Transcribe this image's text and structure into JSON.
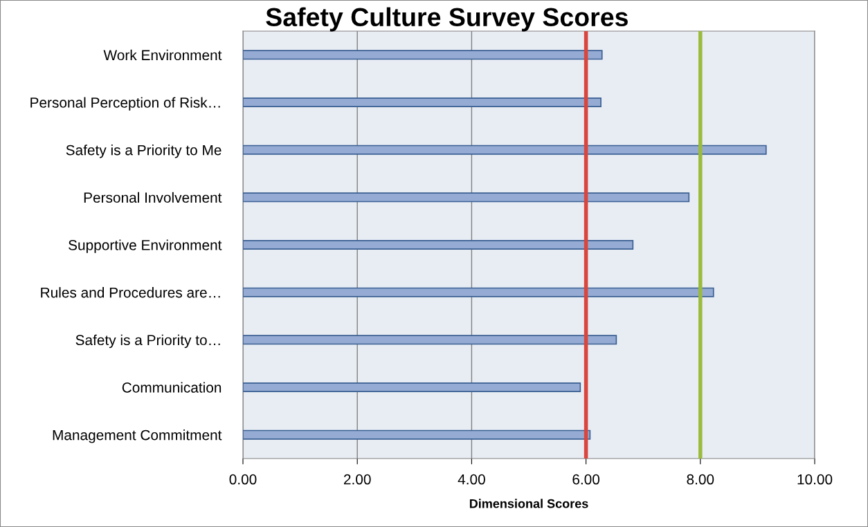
{
  "chart_data": {
    "type": "bar",
    "orientation": "horizontal",
    "title": "Safety Culture Survey Scores",
    "xlabel": "Dimensional Scores",
    "categories": [
      "Work Environment",
      "Personal Perception of Risk…",
      "Safety is a Priority to Me",
      "Personal Involvement",
      "Supportive Environment",
      "Rules and Procedures are…",
      "Safety is a Priority to…",
      "Communication",
      "Management Commitment"
    ],
    "values": [
      6.28,
      6.26,
      9.15,
      7.8,
      6.82,
      8.23,
      6.53,
      5.9,
      6.07
    ],
    "color": "#95abd3",
    "xlim": [
      0,
      10
    ],
    "xticks": [
      {
        "value": 0,
        "label": "0.00"
      },
      {
        "value": 2,
        "label": "2.00"
      },
      {
        "value": 4,
        "label": "4.00"
      },
      {
        "value": 6,
        "label": "6.00"
      },
      {
        "value": 8,
        "label": "8.00"
      },
      {
        "value": 10,
        "label": "10.00"
      }
    ],
    "grid": "x",
    "ref_lines": [
      {
        "axis": "x",
        "value": 6,
        "color": "#d9463e"
      },
      {
        "axis": "x",
        "value": 8,
        "color": "#9bbb3c"
      }
    ]
  }
}
